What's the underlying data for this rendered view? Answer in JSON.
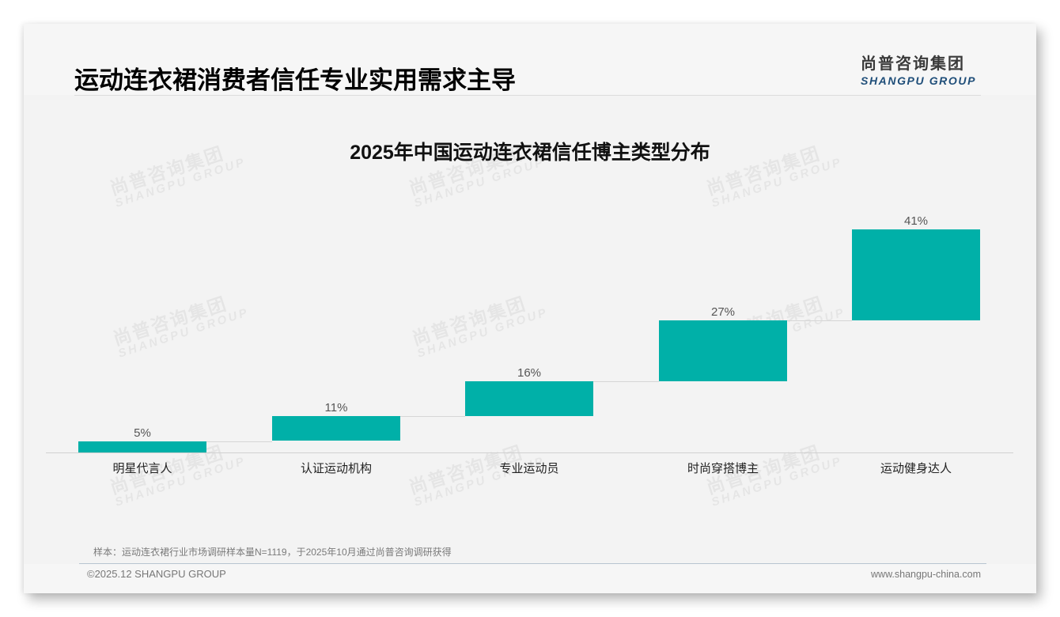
{
  "header": {
    "title": "运动连衣裙消费者信任专业实用需求主导",
    "logo_cn": "尚普咨询集团",
    "logo_en": "SHANGPU GROUP"
  },
  "watermark": {
    "cn": "尚普咨询集团",
    "en": "SHANGPU GROUP"
  },
  "chart_data": {
    "type": "bar",
    "subtype": "waterfall-style staircase",
    "title": "2025年中国运动连衣裙信任博主类型分布",
    "categories": [
      "明星代言人",
      "认证运动机构",
      "专业运动员",
      "时尚穿搭博主",
      "运动健身达人"
    ],
    "values": [
      5,
      11,
      16,
      27,
      41
    ],
    "value_labels": [
      "5%",
      "11%",
      "16%",
      "27%",
      "41%"
    ],
    "unit": "%",
    "xlabel": "",
    "ylabel": "",
    "grid": false,
    "legend": "none",
    "color": "#00b0a8"
  },
  "footer": {
    "note": "样本：运动连衣裙行业市场调研样本量N=1119，于2025年10月通过尚普咨询调研获得",
    "copyright": "©2025.12 SHANGPU GROUP",
    "website": "www.shangpu-china.com"
  }
}
